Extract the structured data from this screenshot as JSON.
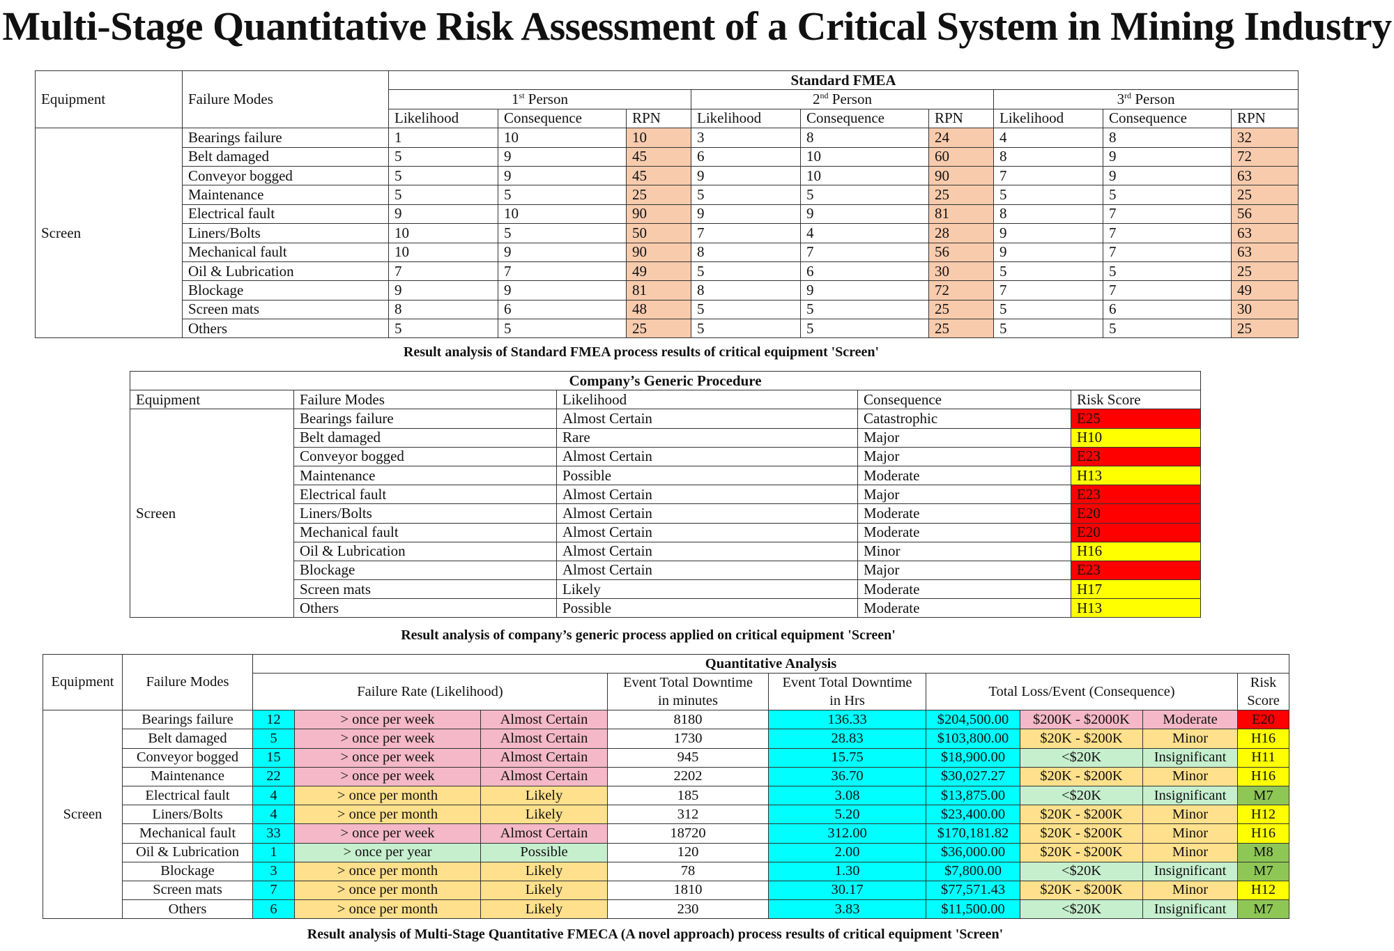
{
  "title": "Multi-Stage Quantitative Risk Assessment of a Critical System in Mining Industry",
  "colors": {
    "rpn": "#f8cbad",
    "extreme": "#ff0000",
    "high": "#ffff00",
    "rate": "#00ffff",
    "weekly": "#f4b8c8",
    "monthly": "#ffe08c",
    "low": "#c6efce",
    "medium": "#8fc757"
  },
  "fmea": {
    "header_equipment": "Equipment",
    "header_failure_modes": "Failure Modes",
    "header_title": "Standard FMEA",
    "persons": [
      {
        "num": "1",
        "sup": "st",
        "rest": " Person"
      },
      {
        "num": "2",
        "sup": "nd",
        "rest": " Person"
      },
      {
        "num": "3",
        "sup": "rd",
        "rest": " Person"
      }
    ],
    "col_likelihood": "Likelihood",
    "col_consequence": "Consequence",
    "col_rpn": "RPN",
    "equipment": "Screen",
    "rows": [
      {
        "mode": "Bearings failure",
        "v": [
          "1",
          "10",
          "10",
          "3",
          "8",
          "24",
          "4",
          "8",
          "32"
        ]
      },
      {
        "mode": "Belt damaged",
        "v": [
          "5",
          "9",
          "45",
          "6",
          "10",
          "60",
          "8",
          "9",
          "72"
        ]
      },
      {
        "mode": "Conveyor bogged",
        "v": [
          "5",
          "9",
          "45",
          "9",
          "10",
          "90",
          "7",
          "9",
          "63"
        ]
      },
      {
        "mode": "Maintenance",
        "v": [
          "5",
          "5",
          "25",
          "5",
          "5",
          "25",
          "5",
          "5",
          "25"
        ]
      },
      {
        "mode": "Electrical fault",
        "v": [
          "9",
          "10",
          "90",
          "9",
          "9",
          "81",
          "8",
          "7",
          "56"
        ]
      },
      {
        "mode": "Liners/Bolts",
        "v": [
          "10",
          "5",
          "50",
          "7",
          "4",
          "28",
          "9",
          "7",
          "63"
        ]
      },
      {
        "mode": "Mechanical fault",
        "v": [
          "10",
          "9",
          "90",
          "8",
          "7",
          "56",
          "9",
          "7",
          "63"
        ]
      },
      {
        "mode": "Oil & Lubrication",
        "v": [
          "7",
          "7",
          "49",
          "5",
          "6",
          "30",
          "5",
          "5",
          "25"
        ]
      },
      {
        "mode": "Blockage",
        "v": [
          "9",
          "9",
          "81",
          "8",
          "9",
          "72",
          "7",
          "7",
          "49"
        ]
      },
      {
        "mode": "Screen mats",
        "v": [
          "8",
          "6",
          "48",
          "5",
          "5",
          "25",
          "5",
          "6",
          "30"
        ]
      },
      {
        "mode": "Others",
        "v": [
          "5",
          "5",
          "25",
          "5",
          "5",
          "25",
          "5",
          "5",
          "25"
        ]
      }
    ],
    "caption": "Result analysis of Standard FMEA process results of critical equipment 'Screen'"
  },
  "generic": {
    "header_title": "Company’s Generic Procedure",
    "columns": [
      "Equipment",
      "Failure Modes",
      "Likelihood",
      "Consequence",
      "Risk Score"
    ],
    "equipment": "Screen",
    "rows": [
      {
        "mode": "Bearings failure",
        "likelihood": "Almost Certain",
        "consequence": "Catastrophic",
        "score": "E25",
        "level": "red"
      },
      {
        "mode": "Belt damaged",
        "likelihood": "Rare",
        "consequence": "Major",
        "score": "H10",
        "level": "yellow"
      },
      {
        "mode": "Conveyor bogged",
        "likelihood": "Almost Certain",
        "consequence": "Major",
        "score": "E23",
        "level": "red"
      },
      {
        "mode": "Maintenance",
        "likelihood": "Possible",
        "consequence": "Moderate",
        "score": "H13",
        "level": "yellow"
      },
      {
        "mode": "Electrical fault",
        "likelihood": "Almost Certain",
        "consequence": "Major",
        "score": "E23",
        "level": "red"
      },
      {
        "mode": "Liners/Bolts",
        "likelihood": "Almost Certain",
        "consequence": "Moderate",
        "score": "E20",
        "level": "red"
      },
      {
        "mode": "Mechanical fault",
        "likelihood": "Almost Certain",
        "consequence": "Moderate",
        "score": "E20",
        "level": "red"
      },
      {
        "mode": "Oil & Lubrication",
        "likelihood": "Almost Certain",
        "consequence": "Minor",
        "score": "H16",
        "level": "yellow"
      },
      {
        "mode": "Blockage",
        "likelihood": "Almost Certain",
        "consequence": "Major",
        "score": "E23",
        "level": "red"
      },
      {
        "mode": "Screen mats",
        "likelihood": "Likely",
        "consequence": "Moderate",
        "score": "H17",
        "level": "yellow"
      },
      {
        "mode": "Others",
        "likelihood": "Possible",
        "consequence": "Moderate",
        "score": "H13",
        "level": "yellow"
      }
    ],
    "caption": "Result analysis of company’s generic process applied on critical equipment 'Screen'"
  },
  "quant": {
    "header_title": "Quantitative Analysis",
    "col_equipment": "Equipment",
    "col_failure_modes": "Failure Modes",
    "col_failure_rate": "Failure Rate (Likelihood)",
    "col_downtime_min_1": "Event Total Downtime",
    "col_downtime_min_2": "in minutes",
    "col_downtime_hrs_1": "Event Total Downtime",
    "col_downtime_hrs_2": "in Hrs",
    "col_loss": "Total Loss/Event (Consequence)",
    "col_risk_1": "Risk",
    "col_risk_2": "Score",
    "equipment": "Screen",
    "rows": [
      {
        "mode": "Bearings failure",
        "rate": "12",
        "freq": "> once per week",
        "lik": "Almost Certain",
        "fc": "pink",
        "mins": "8180",
        "hrs": "136.33",
        "loss": "$204,500.00",
        "band": "$200K - $2000K",
        "cons": "Moderate",
        "bc": "pink",
        "score": "E20",
        "sc": "red"
      },
      {
        "mode": "Belt damaged",
        "rate": "5",
        "freq": "> once per week",
        "lik": "Almost Certain",
        "fc": "pink",
        "mins": "1730",
        "hrs": "28.83",
        "loss": "$103,800.00",
        "band": "$20K - $200K",
        "cons": "Minor",
        "bc": "orange",
        "score": "H16",
        "sc": "yellow"
      },
      {
        "mode": "Conveyor bogged",
        "rate": "15",
        "freq": "> once per week",
        "lik": "Almost Certain",
        "fc": "pink",
        "mins": "945",
        "hrs": "15.75",
        "loss": "$18,900.00",
        "band": "<$20K",
        "cons": "Insignificant",
        "bc": "lgreen",
        "score": "H11",
        "sc": "yellow"
      },
      {
        "mode": "Maintenance",
        "rate": "22",
        "freq": "> once per week",
        "lik": "Almost Certain",
        "fc": "pink",
        "mins": "2202",
        "hrs": "36.70",
        "loss": "$30,027.27",
        "band": "$20K - $200K",
        "cons": "Minor",
        "bc": "orange",
        "score": "H16",
        "sc": "yellow"
      },
      {
        "mode": "Electrical fault",
        "rate": "4",
        "freq": "> once per month",
        "lik": "Likely",
        "fc": "orange",
        "mins": "185",
        "hrs": "3.08",
        "loss": "$13,875.00",
        "band": "<$20K",
        "cons": "Insignificant",
        "bc": "lgreen",
        "score": "M7",
        "sc": "green"
      },
      {
        "mode": "Liners/Bolts",
        "rate": "4",
        "freq": "> once per month",
        "lik": "Likely",
        "fc": "orange",
        "mins": "312",
        "hrs": "5.20",
        "loss": "$23,400.00",
        "band": "$20K - $200K",
        "cons": "Minor",
        "bc": "orange",
        "score": "H12",
        "sc": "yellow"
      },
      {
        "mode": "Mechanical fault",
        "rate": "33",
        "freq": "> once per week",
        "lik": "Almost Certain",
        "fc": "pink",
        "mins": "18720",
        "hrs": "312.00",
        "loss": "$170,181.82",
        "band": "$20K - $200K",
        "cons": "Minor",
        "bc": "orange",
        "score": "H16",
        "sc": "yellow"
      },
      {
        "mode": "Oil & Lubrication",
        "rate": "1",
        "freq": "> once per year",
        "lik": "Possible",
        "fc": "lgreen",
        "mins": "120",
        "hrs": "2.00",
        "loss": "$36,000.00",
        "band": "$20K - $200K",
        "cons": "Minor",
        "bc": "orange",
        "score": "M8",
        "sc": "green"
      },
      {
        "mode": "Blockage",
        "rate": "3",
        "freq": "> once per month",
        "lik": "Likely",
        "fc": "orange",
        "mins": "78",
        "hrs": "1.30",
        "loss": "$7,800.00",
        "band": "<$20K",
        "cons": "Insignificant",
        "bc": "lgreen",
        "score": "M7",
        "sc": "green"
      },
      {
        "mode": "Screen mats",
        "rate": "7",
        "freq": "> once per month",
        "lik": "Likely",
        "fc": "orange",
        "mins": "1810",
        "hrs": "30.17",
        "loss": "$77,571.43",
        "band": "$20K - $200K",
        "cons": "Minor",
        "bc": "orange",
        "score": "H12",
        "sc": "yellow"
      },
      {
        "mode": "Others",
        "rate": "6",
        "freq": "> once per month",
        "lik": "Likely",
        "fc": "orange",
        "mins": "230",
        "hrs": "3.83",
        "loss": "$11,500.00",
        "band": "<$20K",
        "cons": "Insignificant",
        "bc": "lgreen",
        "score": "M7",
        "sc": "green"
      }
    ],
    "caption": "Result analysis of Multi-Stage Quantitative FMECA (A novel approach) process results of critical equipment 'Screen'"
  }
}
